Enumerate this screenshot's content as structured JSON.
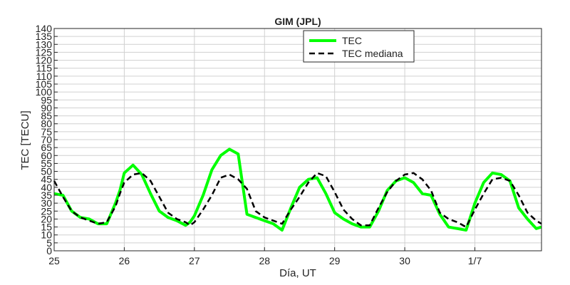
{
  "chart_data": {
    "type": "line",
    "title": "GIM (JPL)",
    "xlabel": "Día, UT",
    "ylabel": "TEC [TECU]",
    "ylim": [
      0,
      140
    ],
    "xlim": [
      0,
      6.95
    ],
    "yticks": [
      0,
      5,
      10,
      15,
      20,
      25,
      30,
      35,
      40,
      45,
      50,
      55,
      60,
      65,
      70,
      75,
      80,
      85,
      90,
      95,
      100,
      105,
      110,
      115,
      120,
      125,
      130,
      135,
      140
    ],
    "xticks": [
      {
        "x": 0,
        "label": "25"
      },
      {
        "x": 1,
        "label": "26"
      },
      {
        "x": 2,
        "label": "27"
      },
      {
        "x": 3,
        "label": "28"
      },
      {
        "x": 4,
        "label": "29"
      },
      {
        "x": 5,
        "label": "30"
      },
      {
        "x": 6,
        "label": "1/7"
      }
    ],
    "grid": true,
    "legend_position": "top-center",
    "series": [
      {
        "name": "TEC",
        "color": "#00ff00",
        "style": "solid",
        "x": [
          0,
          0.125,
          0.25,
          0.375,
          0.5,
          0.625,
          0.75,
          0.875,
          0.9375,
          1.0,
          1.125,
          1.25,
          1.375,
          1.5,
          1.625,
          1.75,
          1.875,
          1.9375,
          2.0,
          2.125,
          2.25,
          2.375,
          2.5,
          2.625,
          2.75,
          2.875,
          3.0,
          3.125,
          3.25,
          3.375,
          3.5,
          3.625,
          3.75,
          3.875,
          4.0,
          4.125,
          4.25,
          4.375,
          4.5,
          4.625,
          4.75,
          4.875,
          5.0,
          5.125,
          5.25,
          5.375,
          5.5,
          5.625,
          5.75,
          5.875,
          6.0,
          6.125,
          6.25,
          6.375,
          6.5,
          6.625,
          6.75,
          6.875,
          6.95
        ],
        "values": [
          36,
          35,
          25,
          21,
          20,
          17,
          17,
          30,
          38,
          49,
          54,
          48,
          36,
          25,
          21,
          19,
          16,
          18,
          22,
          35,
          51,
          60,
          64,
          61,
          23,
          21,
          19,
          17,
          13,
          27,
          40,
          45,
          46,
          36,
          24,
          20,
          17,
          15,
          15,
          25,
          38,
          44,
          46,
          43,
          36,
          35,
          23,
          15,
          14,
          13,
          30,
          43,
          49,
          48,
          44,
          27,
          20,
          14,
          15
        ]
      },
      {
        "name": "TEC mediana",
        "color": "#000000",
        "style": "dashed",
        "x": [
          0,
          0.125,
          0.25,
          0.375,
          0.5,
          0.625,
          0.75,
          0.875,
          0.9375,
          1.0,
          1.125,
          1.25,
          1.375,
          1.5,
          1.625,
          1.75,
          1.875,
          1.9375,
          2.0,
          2.125,
          2.25,
          2.375,
          2.5,
          2.625,
          2.75,
          2.875,
          3.0,
          3.125,
          3.25,
          3.375,
          3.5,
          3.625,
          3.75,
          3.875,
          4.0,
          4.125,
          4.25,
          4.375,
          4.5,
          4.625,
          4.75,
          4.875,
          5.0,
          5.125,
          5.25,
          5.375,
          5.5,
          5.625,
          5.75,
          5.875,
          6.0,
          6.125,
          6.25,
          6.375,
          6.5,
          6.625,
          6.75,
          6.875,
          6.95
        ],
        "values": [
          44,
          34,
          25,
          21,
          19,
          17,
          18,
          28,
          36,
          43,
          48,
          49,
          44,
          34,
          24,
          20,
          18,
          16,
          18,
          26,
          35,
          46,
          48,
          45,
          39,
          25,
          21,
          19,
          17,
          26,
          34,
          43,
          49,
          47,
          37,
          26,
          20,
          16,
          16,
          27,
          37,
          44,
          48,
          49,
          45,
          38,
          24,
          20,
          18,
          15,
          26,
          36,
          45,
          46,
          44,
          35,
          24,
          19,
          17
        ]
      }
    ]
  }
}
